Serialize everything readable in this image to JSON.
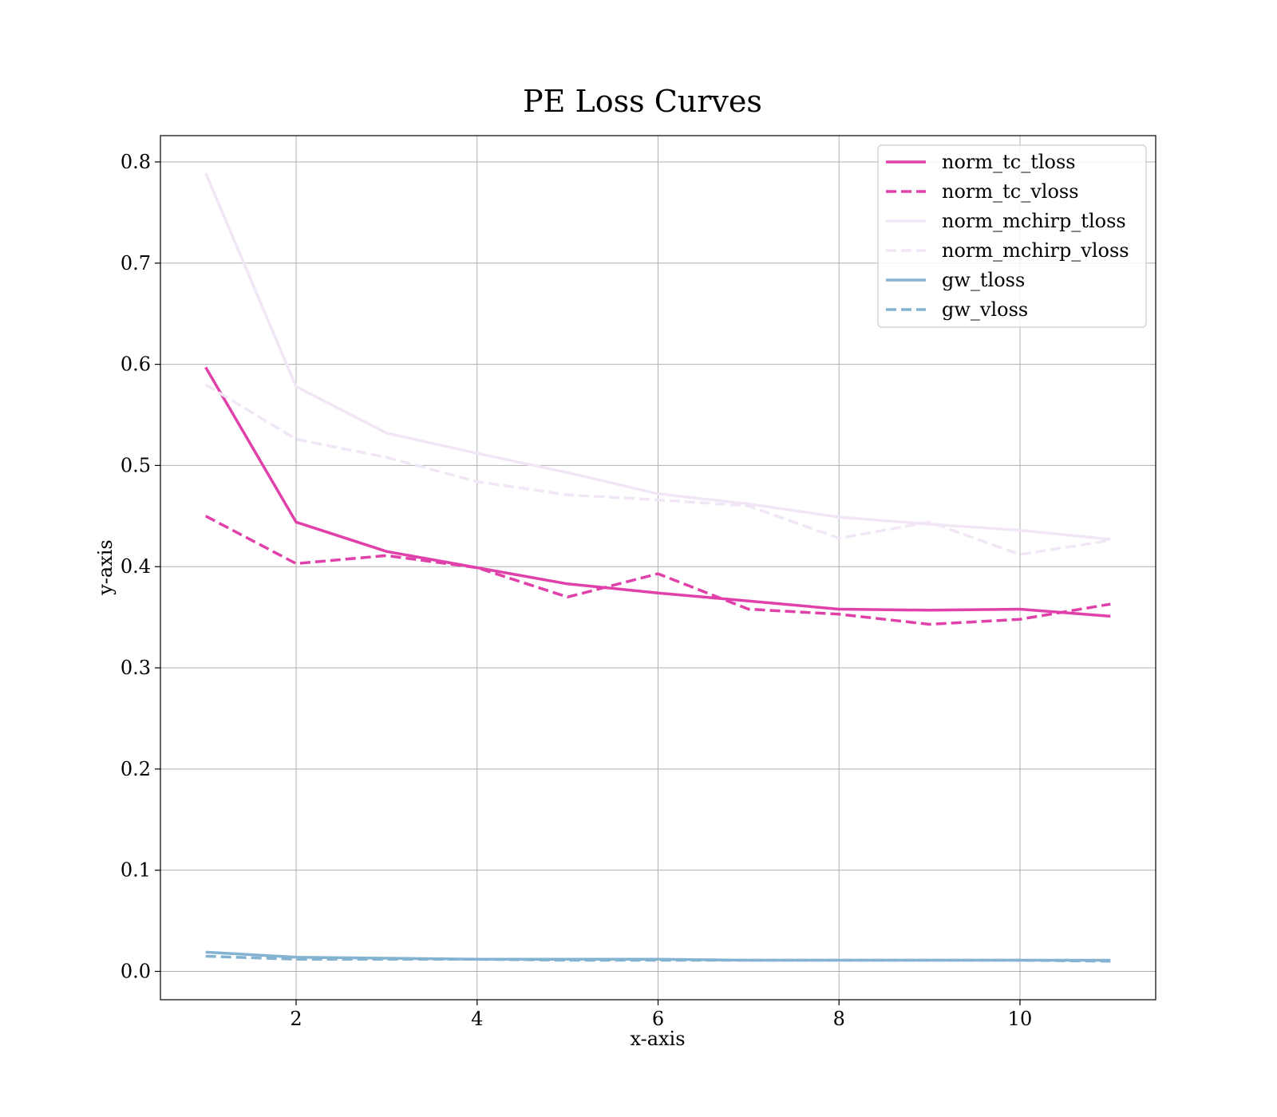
{
  "chart_data": {
    "type": "line",
    "title": "PE Loss Curves",
    "xlabel": "x-axis",
    "ylabel": "y-axis",
    "xlim": [
      0.5,
      11.5
    ],
    "ylim": [
      -0.028,
      0.826
    ],
    "xticks": [
      2,
      4,
      6,
      8,
      10
    ],
    "yticks": [
      0.0,
      0.1,
      0.2,
      0.3,
      0.4,
      0.5,
      0.6,
      0.7,
      0.8
    ],
    "grid": true,
    "legend_position": "top-right",
    "x": [
      1,
      2,
      3,
      4,
      5,
      6,
      7,
      8,
      9,
      10,
      11
    ],
    "series": [
      {
        "name": "norm_tc_tloss",
        "color": "#e040a9",
        "style": "solid",
        "values": [
          0.597,
          0.444,
          0.415,
          0.399,
          0.383,
          0.374,
          0.366,
          0.358,
          0.357,
          0.358,
          0.351
        ]
      },
      {
        "name": "norm_tc_vloss",
        "color": "#e040a9",
        "style": "dashed",
        "values": [
          0.45,
          0.403,
          0.411,
          0.399,
          0.37,
          0.393,
          0.358,
          0.353,
          0.343,
          0.348,
          0.363
        ]
      },
      {
        "name": "norm_mchirp_tloss",
        "color": "#f1e6f6",
        "style": "solid",
        "values": [
          0.789,
          0.578,
          0.532,
          0.512,
          0.493,
          0.472,
          0.462,
          0.449,
          0.442,
          0.436,
          0.427
        ]
      },
      {
        "name": "norm_mchirp_vloss",
        "color": "#f1e6f6",
        "style": "dashed",
        "values": [
          0.58,
          0.526,
          0.508,
          0.484,
          0.471,
          0.466,
          0.46,
          0.428,
          0.444,
          0.412,
          0.426
        ]
      },
      {
        "name": "gw_tloss",
        "color": "#83b3d1",
        "style": "solid",
        "values": [
          0.019,
          0.014,
          0.013,
          0.012,
          0.012,
          0.012,
          0.011,
          0.011,
          0.011,
          0.011,
          0.011
        ]
      },
      {
        "name": "gw_vloss",
        "color": "#83b3d1",
        "style": "dashed",
        "values": [
          0.015,
          0.012,
          0.012,
          0.012,
          0.011,
          0.011,
          0.011,
          0.011,
          0.011,
          0.011,
          0.01
        ]
      }
    ]
  }
}
